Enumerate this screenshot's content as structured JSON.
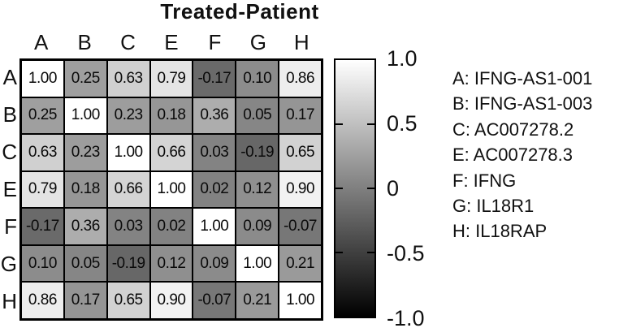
{
  "chart_data": {
    "type": "heatmap",
    "title": "Treated-Patient",
    "rows": [
      "A",
      "B",
      "C",
      "E",
      "F",
      "G",
      "H"
    ],
    "cols": [
      "A",
      "B",
      "C",
      "E",
      "F",
      "G",
      "H"
    ],
    "values": [
      [
        1.0,
        0.25,
        0.63,
        0.79,
        -0.17,
        0.1,
        0.86
      ],
      [
        0.25,
        1.0,
        0.23,
        0.18,
        0.36,
        0.05,
        0.17
      ],
      [
        0.63,
        0.23,
        1.0,
        0.66,
        0.03,
        -0.19,
        0.65
      ],
      [
        0.79,
        0.18,
        0.66,
        1.0,
        0.02,
        0.12,
        0.9
      ],
      [
        -0.17,
        0.36,
        0.03,
        0.02,
        1.0,
        0.09,
        -0.07
      ],
      [
        0.1,
        0.05,
        -0.19,
        0.12,
        0.09,
        1.0,
        0.21
      ],
      [
        0.86,
        0.17,
        0.65,
        0.9,
        -0.07,
        0.21,
        1.0
      ]
    ],
    "value_format_decimals": 2,
    "colorbar": {
      "min": -1.0,
      "max": 1.0,
      "color_high": "#ffffff",
      "color_low": "#000000",
      "tick_labels": [
        "1.0",
        "0.5",
        "0",
        "-0.5",
        "-1.0"
      ],
      "tick_values": [
        1.0,
        0.5,
        0,
        -0.5,
        -1.0
      ]
    },
    "legend_position": "right",
    "grid": true
  },
  "legend": [
    {
      "key": "A",
      "name": "IFNG-AS1-001"
    },
    {
      "key": "B",
      "name": "IFNG-AS1-003"
    },
    {
      "key": "C",
      "name": "AC007278.2"
    },
    {
      "key": "E",
      "name": "AC007278.3"
    },
    {
      "key": "F",
      "name": "IFNG"
    },
    {
      "key": "G",
      "name": "IL18R1"
    },
    {
      "key": "H",
      "name": "IL18RAP"
    }
  ]
}
